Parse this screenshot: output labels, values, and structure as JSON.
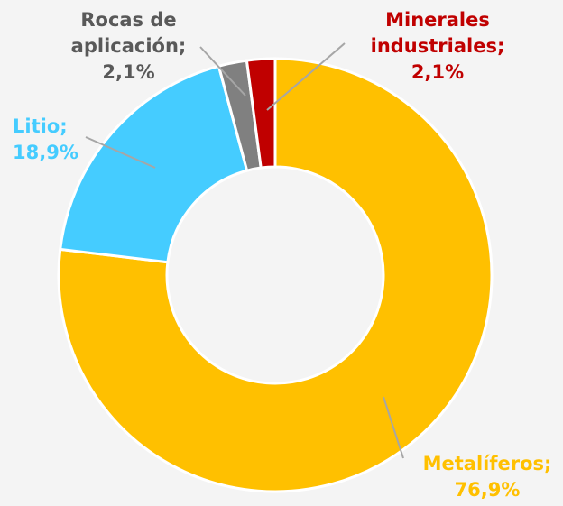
{
  "chart_data": {
    "type": "donut",
    "categories": [
      "Metalíferos;",
      "Litio;",
      "Rocas de aplicación;",
      "Minerales industriales;"
    ],
    "values": [
      76.9,
      18.9,
      2.1,
      2.1
    ],
    "value_labels": [
      "76,9%",
      "18,9%",
      "2,1%",
      "2,1%"
    ],
    "colors": [
      "#FFC000",
      "#45CCFF",
      "#808080",
      "#C00000"
    ]
  }
}
